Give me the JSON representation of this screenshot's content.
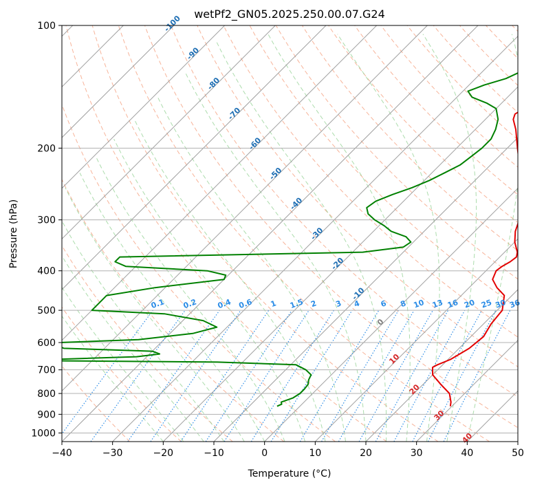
{
  "chart_data": {
    "type": "line",
    "subtype": "skew-t log-p diagram",
    "title": "wetPf2_GN05.2025.250.00.07.G24",
    "xlabel": "Temperature (°C)",
    "ylabel": "Pressure (hPa)",
    "xlim": [
      -40,
      50
    ],
    "ylim": [
      1050,
      100
    ],
    "y_scale": "log",
    "x_ticks": [
      -40,
      -30,
      -20,
      -10,
      0,
      10,
      20,
      30,
      40,
      50
    ],
    "y_ticks": [
      100,
      200,
      300,
      400,
      500,
      600,
      700,
      800,
      900,
      1000
    ],
    "grid": true,
    "colors": {
      "temperature": "#e30000",
      "dewpoint": "#008000",
      "mixing_ratio": "#2b8ce6",
      "dry_adiabat": "#f5a080",
      "moist_adiabat": "#90d090",
      "isotherm": "#a0a0a0",
      "neg_isotherm_label": "#1f6fb4",
      "pos_isotherm_label": "#d62728",
      "zero_label": "#7f7f7f"
    },
    "series": [
      {
        "role": "temperature",
        "p": [
          860,
          840,
          800,
          760,
          720,
          690,
          680,
          660,
          620,
          580,
          540,
          500,
          460,
          440,
          420,
          400,
          390,
          380,
          370,
          360,
          340,
          320,
          300,
          260,
          230,
          200,
          180,
          170,
          165,
          160,
          150,
          140,
          130,
          120,
          110,
          100
        ],
        "t": [
          29.7,
          29.0,
          27.0,
          23.5,
          20.0,
          18.5,
          19.0,
          20.5,
          22.0,
          22.5,
          21.5,
          21.0,
          18.5,
          15.5,
          13.0,
          12.0,
          12.3,
          13.0,
          13.3,
          12.5,
          10.0,
          8.0,
          6.5,
          2.0,
          -2.5,
          -8.0,
          -12.0,
          -14.5,
          -15.2,
          -14.5,
          -13.5,
          -13.3,
          -14.8,
          -17.5,
          -19.0,
          -20.0
        ]
      },
      {
        "role": "dewpoint",
        "p": [
          860,
          850,
          840,
          820,
          800,
          780,
          760,
          740,
          720,
          700,
          680,
          670,
          665,
          660,
          650,
          640,
          630,
          620,
          610,
          600,
          590,
          570,
          550,
          530,
          510,
          500,
          480,
          460,
          440,
          420,
          410,
          400,
          390,
          380,
          370,
          360,
          350,
          340,
          330,
          320,
          310,
          300,
          290,
          280,
          270,
          260,
          250,
          240,
          230,
          220,
          210,
          200,
          190,
          180,
          170,
          160,
          155,
          150,
          145,
          140,
          135,
          130,
          125,
          120,
          115,
          110,
          105,
          100
        ],
        "t": [
          -4.5,
          -4.0,
          -4.5,
          -3.0,
          -2.5,
          -2.5,
          -2.7,
          -3.5,
          -4.0,
          -6.0,
          -9.0,
          -25.0,
          -57.0,
          -58.0,
          -42.0,
          -38.0,
          -40.0,
          -58.0,
          -60.0,
          -60.0,
          -45.0,
          -35.5,
          -32.0,
          -36.0,
          -45.0,
          -60.0,
          -60.0,
          -60.0,
          -52.0,
          -40.0,
          -40.5,
          -45.0,
          -62.0,
          -65.0,
          -65.0,
          -18.0,
          -11.0,
          -10.5,
          -12.5,
          -16.5,
          -19.0,
          -22.0,
          -24.5,
          -26.0,
          -25.5,
          -23.5,
          -21.0,
          -19.0,
          -17.5,
          -16.0,
          -15.5,
          -15.0,
          -15.0,
          -16.0,
          -17.5,
          -20.0,
          -23.0,
          -27.0,
          -29.0,
          -27.0,
          -24.0,
          -22.5,
          -22.0,
          -22.0,
          -21.5,
          -21.0,
          -20.8,
          -20.5
        ]
      }
    ],
    "isotherm_labels": [
      "-100",
      "-90",
      "-80",
      "-70",
      "-60",
      "-50",
      "-40",
      "-30",
      "-20",
      "-10",
      "0",
      "10",
      "20",
      "30",
      "40"
    ],
    "mixing_ratio_labels": [
      "0.1",
      "0.2",
      "0.4",
      "0.6",
      "1",
      "1.5",
      "2",
      "3",
      "4",
      "6",
      "8",
      "10",
      "13",
      "16",
      "20",
      "25",
      "30",
      "36"
    ],
    "mixing_ratio_values": [
      0.1,
      0.2,
      0.4,
      0.6,
      1,
      1.5,
      2,
      3,
      4,
      6,
      8,
      10,
      13,
      16,
      20,
      25,
      30,
      36
    ],
    "isotherm_values": [
      -100,
      -90,
      -80,
      -70,
      -60,
      -50,
      -40,
      -30,
      -20,
      -10,
      0,
      10,
      20,
      30,
      40
    ]
  }
}
